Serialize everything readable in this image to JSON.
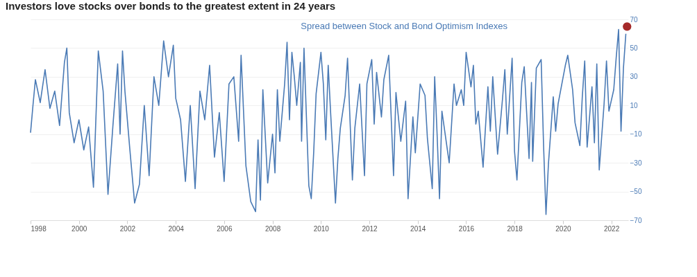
{
  "chart_data": {
    "type": "line",
    "title": "Investors love stocks over bonds to the greatest extent in 24 years",
    "annotations": [
      "Spread between Stock and Bond Optimism Indexes"
    ],
    "xlim": [
      1998,
      2022.7
    ],
    "xticks": [
      1998,
      2000,
      2002,
      2004,
      2006,
      2008,
      2010,
      2012,
      2014,
      2016,
      2018,
      2020,
      2022
    ],
    "ylim": [
      -70,
      70
    ],
    "yticks": [
      -70,
      -50,
      -30,
      -10,
      10,
      30,
      50,
      70
    ],
    "grid": "y",
    "line_style": "solid",
    "series": [
      {
        "color": "#4a7ab5",
        "x": [
          1998.0,
          1998.1,
          1998.2,
          1998.4,
          1998.6,
          1998.8,
          1999.0,
          1999.2,
          1999.4,
          1999.5,
          1999.6,
          1999.8,
          2000.0,
          2000.2,
          2000.4,
          2000.6,
          2000.8,
          2001.0,
          2001.2,
          2001.4,
          2001.6,
          2001.7,
          2001.8,
          2001.9,
          2002.1,
          2002.3,
          2002.5,
          2002.7,
          2002.9,
          2003.1,
          2003.3,
          2003.5,
          2003.7,
          2003.9,
          2004.0,
          2004.2,
          2004.4,
          2004.6,
          2004.8,
          2005.0,
          2005.2,
          2005.4,
          2005.6,
          2005.8,
          2006.0,
          2006.2,
          2006.4,
          2006.6,
          2006.7,
          2006.9,
          2007.1,
          2007.3,
          2007.4,
          2007.5,
          2007.6,
          2007.8,
          2008.0,
          2008.1,
          2008.2,
          2008.3,
          2008.5,
          2008.6,
          2008.7,
          2008.8,
          2008.9,
          2009.0,
          2009.15,
          2009.2,
          2009.3,
          2009.5,
          2009.6,
          2009.7,
          2009.8,
          2010.0,
          2010.1,
          2010.2,
          2010.3,
          2010.4,
          2010.6,
          2010.7,
          2010.8,
          2011.0,
          2011.1,
          2011.3,
          2011.4,
          2011.6,
          2011.8,
          2011.9,
          2012.1,
          2012.2,
          2012.3,
          2012.5,
          2012.6,
          2012.8,
          2013.0,
          2013.1,
          2013.3,
          2013.5,
          2013.6,
          2013.8,
          2013.9,
          2014.1,
          2014.3,
          2014.4,
          2014.6,
          2014.7,
          2014.8,
          2014.9,
          2015.0,
          2015.3,
          2015.5,
          2015.6,
          2015.8,
          2015.9,
          2016.0,
          2016.2,
          2016.3,
          2016.4,
          2016.5,
          2016.7,
          2016.9,
          2017.0,
          2017.1,
          2017.3,
          2017.5,
          2017.6,
          2017.7,
          2017.9,
          2018.0,
          2018.1,
          2018.3,
          2018.4,
          2018.6,
          2018.7,
          2018.75,
          2018.9,
          2019.1,
          2019.2,
          2019.3,
          2019.4,
          2019.6,
          2019.7,
          2019.8,
          2020.0,
          2020.1,
          2020.2,
          2020.4,
          2020.5,
          2020.7,
          2020.8,
          2020.9,
          2021.0,
          2021.2,
          2021.3,
          2021.4,
          2021.5,
          2021.7,
          2021.8,
          2021.9,
          2022.1,
          2022.2,
          2022.3,
          2022.4,
          2022.5,
          2022.6
        ],
        "values": [
          -9,
          10,
          28,
          12,
          35,
          8,
          20,
          -4,
          40,
          50,
          5,
          -16,
          0,
          -21,
          -5,
          -47,
          48,
          20,
          -52,
          -5,
          39,
          -10,
          48,
          20,
          -20,
          -58,
          -45,
          10,
          -39,
          30,
          10,
          55,
          30,
          52,
          15,
          0,
          -43,
          10,
          -48,
          20,
          0,
          38,
          -26,
          5,
          -43,
          25,
          30,
          -15,
          45,
          -32,
          -57,
          -64,
          -14,
          -56,
          21,
          -44,
          -10,
          -37,
          21,
          -15,
          25,
          54,
          0,
          47,
          30,
          10,
          40,
          -15,
          50,
          -46,
          -55,
          -23,
          18,
          47,
          25,
          -14,
          38,
          5,
          -58,
          -27,
          -6,
          17,
          43,
          -42,
          -6,
          25,
          -39,
          25,
          42,
          -3,
          33,
          2,
          28,
          45,
          -39,
          19,
          -15,
          13,
          -55,
          2,
          -23,
          25,
          17,
          -13,
          -48,
          30,
          -10,
          -55,
          6,
          -30,
          25,
          10,
          21,
          10,
          47,
          23,
          38,
          -3,
          6,
          -33,
          23,
          -8,
          30,
          -24,
          14,
          35,
          -10,
          43,
          -22,
          -42,
          26,
          37,
          -27,
          26,
          -29,
          36,
          42,
          -18,
          -66,
          -31,
          16,
          -8,
          11,
          29,
          38,
          45,
          21,
          -2,
          -18,
          16,
          41,
          -19,
          23,
          -16,
          39,
          -35,
          11,
          41,
          6,
          21,
          43,
          63,
          -8,
          36,
          60
        ]
      },
      {
        "type": "scatter",
        "color": "#a52a2a",
        "marker": "circle",
        "x": [
          2022.65
        ],
        "values": [
          65
        ]
      }
    ]
  }
}
